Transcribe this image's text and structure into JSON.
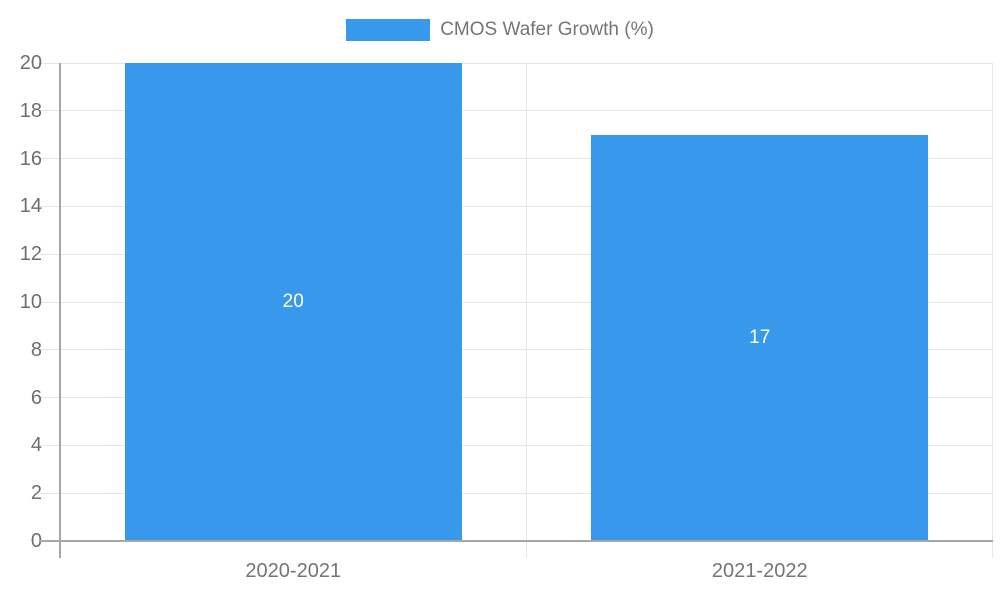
{
  "legend": {
    "label": "CMOS Wafer Growth (%)"
  },
  "chart_data": {
    "type": "bar",
    "title": "",
    "xlabel": "",
    "ylabel": "",
    "categories": [
      "2020-2021",
      "2021-2022"
    ],
    "series": [
      {
        "name": "CMOS Wafer Growth (%)",
        "values": [
          20,
          17
        ]
      }
    ],
    "bar_value_labels": [
      "20",
      "17"
    ],
    "ylim": [
      0,
      20
    ],
    "yticks": [
      0,
      2,
      4,
      6,
      8,
      10,
      12,
      14,
      16,
      18,
      20
    ],
    "grid": true,
    "legend_position": "top-center",
    "colors": {
      "bar": "#3899EC",
      "gridline": "#E6E6E6",
      "axis": "#A6A6A6",
      "baseline": "#A6A6A6",
      "tick_label": "#6E6E6E",
      "category_label": "#757575",
      "legend_text": "#757575",
      "value_label": "#FFFFFF",
      "background": "#FFFFFF"
    }
  }
}
